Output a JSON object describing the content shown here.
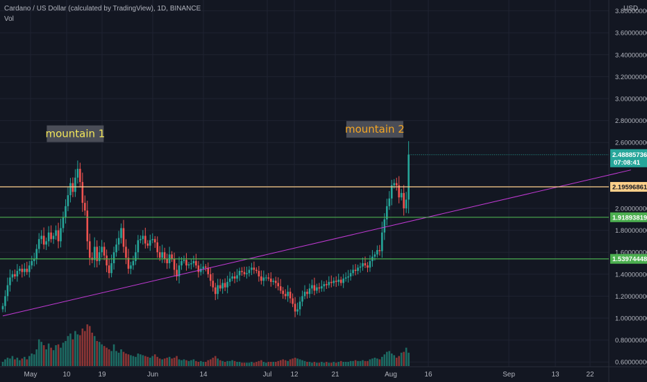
{
  "header": {
    "symbol_line": "Cardano / US Dollar (calculated by TradingView), 1D, BINANCE",
    "indicator": "Vol",
    "currency": "USD"
  },
  "colors": {
    "background": "#131722",
    "grid": "#1f2331",
    "up": "#26a69a",
    "down": "#ef5350",
    "vol_up": "#1d6b63",
    "vol_down": "#8a3535",
    "level_orange": "#ffd08a",
    "level_green": "#4caf50",
    "trendline": "#c33ad6",
    "annotation1_text": "#f3e75a",
    "annotation2_text": "#f5a623",
    "annotation_bg": "#4a4d57",
    "axis_text": "#b2b5be"
  },
  "chart_data": {
    "type": "candlestick",
    "title": "Cardano / US Dollar (calculated by TradingView), 1D, BINANCE",
    "x_tick_labels": [
      "May",
      "10",
      "19",
      "Jun",
      "14",
      "Jul",
      "12",
      "21",
      "Aug",
      "16",
      "Sep",
      "13",
      "22"
    ],
    "y_tick_labels": [
      "0.60000000",
      "0.80000000",
      "1.00000000",
      "1.20000000",
      "1.40000000",
      "1.60000000",
      "1.80000000",
      "2.00000000",
      "2.20000000",
      "2.40000000",
      "2.60000000",
      "2.80000000",
      "3.00000000",
      "3.20000000",
      "3.40000000",
      "3.60000000",
      "3.80000000"
    ],
    "ylim": [
      0.55,
      3.9
    ],
    "grid": true,
    "price_scale_position": "right",
    "start_date": "2021-04-26",
    "closes": [
      1.11,
      1.2,
      1.3,
      1.37,
      1.4,
      1.38,
      1.43,
      1.45,
      1.42,
      1.45,
      1.42,
      1.48,
      1.52,
      1.54,
      1.63,
      1.72,
      1.75,
      1.67,
      1.7,
      1.78,
      1.72,
      1.75,
      1.8,
      1.7,
      1.82,
      1.92,
      2.02,
      2.12,
      2.23,
      2.15,
      2.28,
      2.36,
      2.24,
      2.05,
      1.98,
      1.7,
      1.55,
      1.53,
      1.65,
      1.52,
      1.6,
      1.65,
      1.57,
      1.48,
      1.41,
      1.5,
      1.6,
      1.67,
      1.73,
      1.82,
      1.65,
      1.55,
      1.45,
      1.48,
      1.52,
      1.6,
      1.71,
      1.72,
      1.75,
      1.68,
      1.66,
      1.71,
      1.72,
      1.69,
      1.6,
      1.55,
      1.6,
      1.54,
      1.5,
      1.58,
      1.54,
      1.44,
      1.38,
      1.48,
      1.52,
      1.53,
      1.48,
      1.49,
      1.5,
      1.52,
      1.48,
      1.42,
      1.45,
      1.47,
      1.46,
      1.4,
      1.34,
      1.28,
      1.22,
      1.3,
      1.27,
      1.32,
      1.28,
      1.33,
      1.36,
      1.38,
      1.36,
      1.39,
      1.43,
      1.42,
      1.4,
      1.41,
      1.44,
      1.46,
      1.44,
      1.43,
      1.38,
      1.34,
      1.37,
      1.37,
      1.36,
      1.33,
      1.34,
      1.32,
      1.29,
      1.25,
      1.22,
      1.2,
      1.24,
      1.18,
      1.13,
      1.06,
      1.08,
      1.15,
      1.2,
      1.24,
      1.22,
      1.27,
      1.3,
      1.25,
      1.28,
      1.27,
      1.29,
      1.31,
      1.3,
      1.33,
      1.32,
      1.34,
      1.33,
      1.35,
      1.32,
      1.36,
      1.37,
      1.38,
      1.41,
      1.44,
      1.43,
      1.46,
      1.47,
      1.5,
      1.48,
      1.46,
      1.52,
      1.56,
      1.58,
      1.62,
      1.61,
      1.78,
      1.9,
      2.02,
      2.09,
      2.21,
      2.23,
      2.21,
      2.1,
      2.14,
      2.0,
      2.08,
      2.49
    ],
    "volumes": [
      5,
      8,
      10,
      9,
      12,
      8,
      10,
      7,
      9,
      11,
      8,
      12,
      15,
      14,
      20,
      32,
      29,
      25,
      20,
      27,
      22,
      19,
      25,
      26,
      22,
      28,
      30,
      36,
      39,
      32,
      42,
      38,
      37,
      45,
      42,
      50,
      48,
      40,
      36,
      30,
      29,
      26,
      24,
      22,
      20,
      18,
      26,
      18,
      16,
      20,
      17,
      15,
      14,
      13,
      12,
      11,
      15,
      14,
      13,
      12,
      11,
      10,
      12,
      14,
      11,
      9,
      8,
      9,
      10,
      11,
      9,
      10,
      12,
      8,
      7,
      8,
      7,
      6,
      7,
      8,
      6,
      5,
      6,
      5,
      5,
      7,
      8,
      10,
      12,
      9,
      7,
      6,
      5,
      6,
      6,
      7,
      6,
      5,
      5,
      4,
      4,
      4,
      4,
      5,
      4,
      5,
      6,
      7,
      5,
      4,
      5,
      5,
      5,
      5,
      6,
      7,
      8,
      7,
      6,
      8,
      9,
      10,
      9,
      8,
      7,
      6,
      5,
      5,
      4,
      5,
      4,
      4,
      5,
      4,
      5,
      4,
      4,
      5,
      4,
      5,
      6,
      5,
      5,
      5,
      6,
      6,
      7,
      6,
      6,
      7,
      6,
      6,
      8,
      9,
      10,
      9,
      8,
      11,
      14,
      17,
      18,
      15,
      13,
      10,
      12,
      16,
      17,
      22,
      16
    ],
    "horizontal_levels": [
      {
        "price": 2.19596861,
        "label": "2.19596861",
        "color": "#ffd08a"
      },
      {
        "price": 1.91893819,
        "label": "1.91893819",
        "color": "#4caf50"
      },
      {
        "price": 1.53974448,
        "label": "1.53974448",
        "color": "#4caf50"
      }
    ],
    "last_price": {
      "price": 2.48885736,
      "label": "2.48885736",
      "countdown": "07:08:41",
      "color": "#26a69a"
    },
    "trendline": {
      "from": {
        "day": 0,
        "price": 1.02
      },
      "to": {
        "day": 260,
        "price": 2.35
      }
    },
    "annotations": [
      {
        "text": "mountain 1",
        "day": 30,
        "price": 2.68
      },
      {
        "text": "mountain 2",
        "day": 154,
        "price": 2.72
      }
    ]
  }
}
